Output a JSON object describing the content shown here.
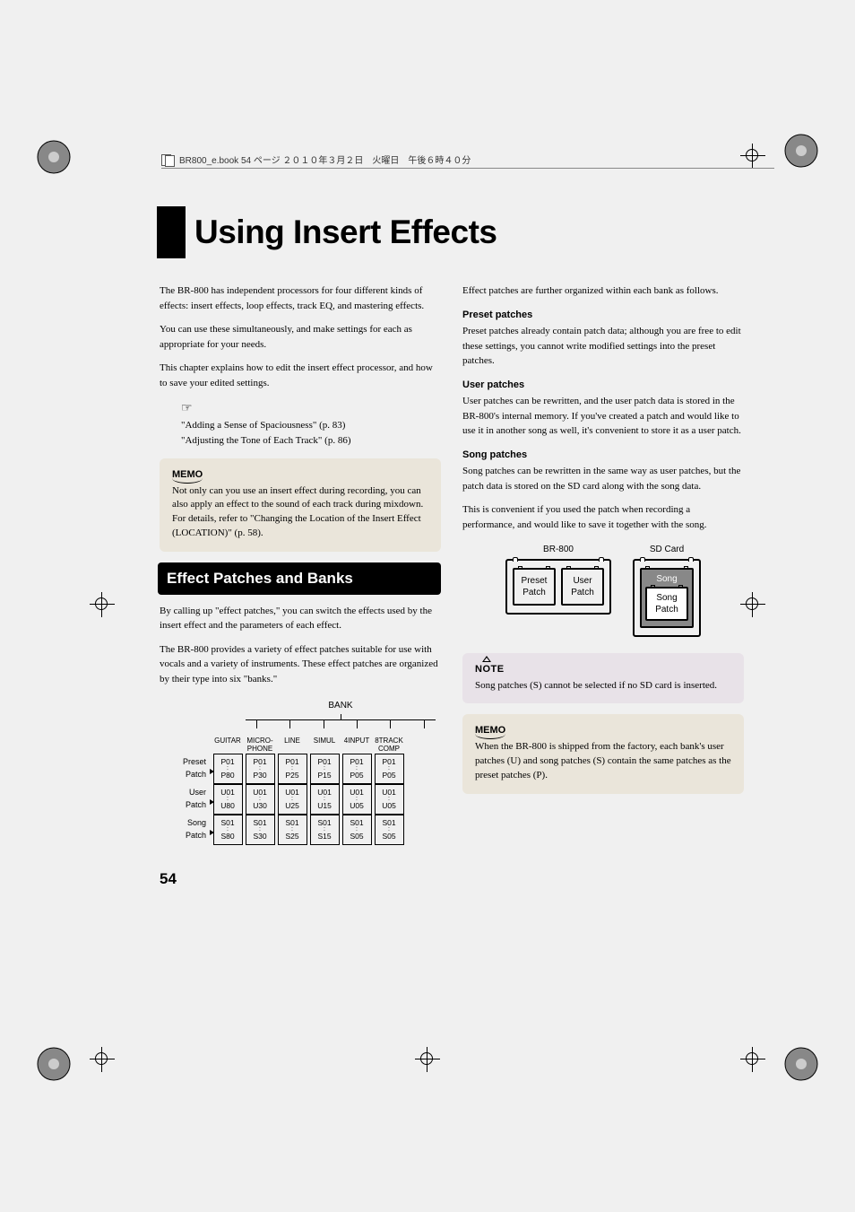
{
  "header": "BR800_e.book 54 ページ ２０１０年３月２日　火曜日　午後６時４０分",
  "title": "Using Insert Effects",
  "page_number": "54",
  "left": {
    "p1": "The BR-800 has independent processors for four different kinds of effects: insert effects, loop effects, track EQ, and mastering effects.",
    "p2": "You can use these simultaneously, and make settings for each as appropriate for your needs.",
    "p3": "This chapter explains how to edit the insert effect processor, and how to save your edited settings.",
    "ref1": "\"Adding a Sense of Spaciousness\" (p. 83)",
    "ref2": "\"Adjusting the Tone of Each Track\" (p. 86)",
    "memo1a": "Not only can you use an insert effect during recording, you can also apply an effect to the sound of each track during mixdown.",
    "memo1b": "For details, refer to \"Changing the Location of the Insert Effect (LOCATION)\" (p. 58).",
    "section": "Effect Patches and Banks",
    "p4": "By calling up \"effect patches,\" you can switch the effects used by the insert effect and the parameters of each effect.",
    "p5": "The BR-800 provides a variety of effect patches suitable for use with vocals and a variety of instruments. These effect patches are organized by their type into six \"banks.\""
  },
  "right": {
    "p1": "Effect patches are further organized within each bank as follows.",
    "h1": "Preset patches",
    "p2": "Preset patches already contain patch data; although you are free to edit these settings, you cannot write modified settings into the preset patches.",
    "h2": "User patches",
    "p3": "User patches can be rewritten, and the user patch data is stored in the BR-800's internal memory. If you've created a patch and would like to use it in another song as well, it's convenient to store it as a user patch.",
    "h3": "Song patches",
    "p4": "Song patches can be rewritten in the same way as user patches, but the patch data is stored on the SD card along with the song data.",
    "p5": "This is convenient if you used the patch when recording a performance, and would like to save it together with the song.",
    "note": "Song patches (S) cannot be selected if no SD card is inserted.",
    "memo": "When the BR-800 is shipped from the factory, each bank's user patches (U) and song patches (S) contain the same patches as the preset patches (P)."
  },
  "bank": {
    "title": "BANK",
    "headers": [
      "GUITAR",
      "MICRO-\nPHONE",
      "LINE",
      "SIMUL",
      "4INPUT",
      "8TRACK\nCOMP"
    ],
    "rows": [
      {
        "label": "Preset\nPatch",
        "cells": [
          [
            "P01",
            "P80"
          ],
          [
            "P01",
            "P30"
          ],
          [
            "P01",
            "P25"
          ],
          [
            "P01",
            "P15"
          ],
          [
            "P01",
            "P05"
          ],
          [
            "P01",
            "P05"
          ]
        ]
      },
      {
        "label": "User\nPatch",
        "cells": [
          [
            "U01",
            "U80"
          ],
          [
            "U01",
            "U30"
          ],
          [
            "U01",
            "U25"
          ],
          [
            "U01",
            "U15"
          ],
          [
            "U01",
            "U05"
          ],
          [
            "U01",
            "U05"
          ]
        ]
      },
      {
        "label": "Song\nPatch",
        "cells": [
          [
            "S01",
            "S80"
          ],
          [
            "S01",
            "S30"
          ],
          [
            "S01",
            "S25"
          ],
          [
            "S01",
            "S15"
          ],
          [
            "S01",
            "S05"
          ],
          [
            "S01",
            "S05"
          ]
        ]
      }
    ]
  },
  "storage": {
    "br": {
      "title": "BR-800",
      "preset": "Preset\nPatch",
      "user": "User\nPatch"
    },
    "sd": {
      "title": "SD Card",
      "song_outer": "Song",
      "song_inner": "Song\nPatch"
    }
  },
  "labels": {
    "memo": "MEMO",
    "note": "NOTE"
  }
}
